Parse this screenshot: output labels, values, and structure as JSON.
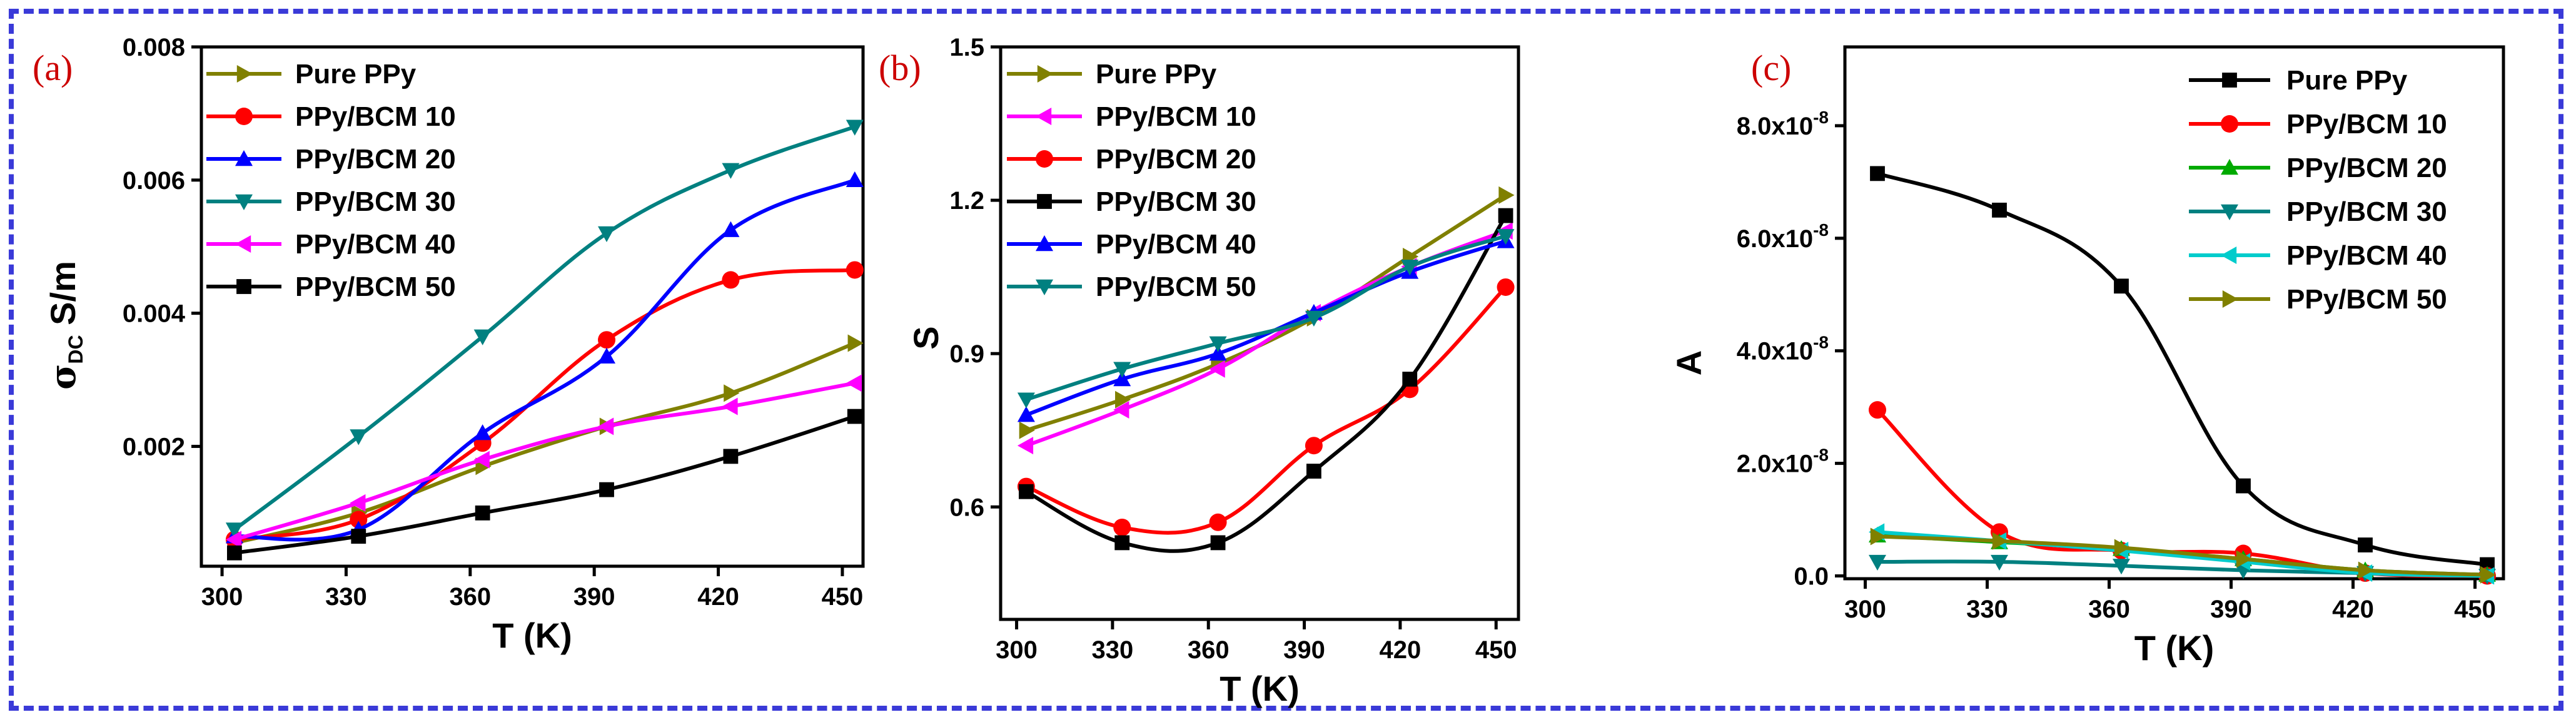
{
  "colors": {
    "frame": "#3a3ad8",
    "panel_letter": "#cc0000",
    "olive": "#808000",
    "red": "#ff0000",
    "blue": "#0000ff",
    "teal": "#008080",
    "magenta": "#ff00ff",
    "black": "#000000",
    "green": "#00aa00",
    "cyan": "#00cccc"
  },
  "chart_data": [
    {
      "type": "line",
      "panel": "(a)",
      "xlabel": "T (K)",
      "ylabel": "σDC S/m",
      "ylabel_main": "σ",
      "ylabel_sub": "DC",
      "ylabel_unit": " S/m",
      "xlim": [
        295,
        455
      ],
      "ylim": [
        0.0002,
        0.008
      ],
      "xticks": [
        300,
        330,
        360,
        390,
        420,
        450
      ],
      "xtick_labels": [
        "300",
        "330",
        "360",
        "390",
        "420",
        "450"
      ],
      "yticks": [
        0.002,
        0.004,
        0.006,
        0.008
      ],
      "ytick_labels": [
        "0.002",
        "0.004",
        "0.006",
        "0.008"
      ],
      "legend_position": "top-left",
      "series": [
        {
          "name": "Pure PPy",
          "color": "#808000",
          "marker": "triangle-right",
          "x": [
            303,
            333,
            363,
            393,
            423,
            453
          ],
          "y": [
            0.00055,
            0.001,
            0.0017,
            0.0023,
            0.0028,
            0.00355
          ]
        },
        {
          "name": "PPy/BCM 10",
          "color": "#ff0000",
          "marker": "circle",
          "x": [
            303,
            333,
            363,
            393,
            423,
            453
          ],
          "y": [
            0.0006,
            0.0009,
            0.00205,
            0.0036,
            0.0045,
            0.00465
          ]
        },
        {
          "name": "PPy/BCM 20",
          "color": "#0000ff",
          "marker": "triangle-up",
          "x": [
            303,
            333,
            363,
            393,
            423,
            453
          ],
          "y": [
            0.00065,
            0.00075,
            0.0022,
            0.00335,
            0.00525,
            0.006
          ]
        },
        {
          "name": "PPy/BCM 30",
          "color": "#008080",
          "marker": "triangle-down",
          "x": [
            303,
            333,
            363,
            393,
            423,
            453
          ],
          "y": [
            0.00075,
            0.00215,
            0.00365,
            0.0052,
            0.00615,
            0.0068
          ]
        },
        {
          "name": "PPy/BCM 40",
          "color": "#ff00ff",
          "marker": "triangle-left",
          "x": [
            303,
            333,
            363,
            393,
            423,
            453
          ],
          "y": [
            0.0006,
            0.00115,
            0.0018,
            0.0023,
            0.0026,
            0.00295
          ]
        },
        {
          "name": "PPy/BCM 50",
          "color": "#000000",
          "marker": "square",
          "x": [
            303,
            333,
            363,
            393,
            423,
            453
          ],
          "y": [
            0.0004,
            0.00065,
            0.001,
            0.00135,
            0.00185,
            0.00245
          ]
        }
      ]
    },
    {
      "type": "line",
      "panel": "(b)",
      "xlabel": "T (K)",
      "ylabel": "S",
      "xlim": [
        295,
        457
      ],
      "ylim": [
        0.38,
        1.5
      ],
      "xticks": [
        300,
        330,
        360,
        390,
        420,
        450
      ],
      "xtick_labels": [
        "300",
        "330",
        "360",
        "390",
        "420",
        "450"
      ],
      "yticks": [
        0.6,
        0.9,
        1.2,
        1.5
      ],
      "ytick_labels": [
        "0.6",
        "0.9",
        "1.2",
        "1.5"
      ],
      "legend_position": "top-left",
      "series": [
        {
          "name": "Pure PPy",
          "color": "#808000",
          "marker": "triangle-right",
          "x": [
            303,
            333,
            363,
            393,
            423,
            453
          ],
          "y": [
            0.75,
            0.81,
            0.88,
            0.97,
            1.09,
            1.21
          ]
        },
        {
          "name": "PPy/BCM 10",
          "color": "#ff00ff",
          "marker": "triangle-left",
          "x": [
            303,
            333,
            363,
            393,
            423,
            453
          ],
          "y": [
            0.72,
            0.79,
            0.87,
            0.98,
            1.07,
            1.14
          ]
        },
        {
          "name": "PPy/BCM 20",
          "color": "#ff0000",
          "marker": "circle",
          "x": [
            303,
            333,
            363,
            393,
            423,
            453
          ],
          "y": [
            0.64,
            0.56,
            0.57,
            0.72,
            0.83,
            1.03
          ]
        },
        {
          "name": "PPy/BCM 30",
          "color": "#000000",
          "marker": "square",
          "x": [
            303,
            333,
            363,
            393,
            423,
            453
          ],
          "y": [
            0.63,
            0.53,
            0.53,
            0.67,
            0.85,
            1.17
          ]
        },
        {
          "name": "PPy/BCM 40",
          "color": "#0000ff",
          "marker": "triangle-up",
          "x": [
            303,
            333,
            363,
            393,
            423,
            453
          ],
          "y": [
            0.78,
            0.85,
            0.9,
            0.98,
            1.06,
            1.12
          ]
        },
        {
          "name": "PPy/BCM 50",
          "color": "#008080",
          "marker": "triangle-down",
          "x": [
            303,
            333,
            363,
            393,
            423,
            453
          ],
          "y": [
            0.81,
            0.87,
            0.92,
            0.97,
            1.07,
            1.13
          ]
        }
      ]
    },
    {
      "type": "line",
      "panel": "(c)",
      "xlabel": "T (K)",
      "ylabel": "A",
      "xlim": [
        295,
        457
      ],
      "ylim": [
        -5e-10,
        9.4e-08
      ],
      "xticks": [
        300,
        330,
        360,
        390,
        420,
        450
      ],
      "xtick_labels": [
        "300",
        "330",
        "360",
        "390",
        "420",
        "450"
      ],
      "yticks": [
        0,
        2e-08,
        4e-08,
        6e-08,
        8e-08
      ],
      "ytick_labels": [
        "0.0",
        "2.0x10",
        "4.0x10",
        "6.0x10",
        "8.0x10"
      ],
      "ytick_exponent": "-8",
      "legend_position": "top-right",
      "series": [
        {
          "name": "Pure PPy",
          "color": "#000000",
          "marker": "square",
          "x": [
            303,
            333,
            363,
            393,
            423,
            453
          ],
          "y": [
            7.15e-08,
            6.5e-08,
            5.15e-08,
            1.6e-08,
            5.5e-09,
            2e-09
          ]
        },
        {
          "name": "PPy/BCM 10",
          "color": "#ff0000",
          "marker": "circle",
          "x": [
            303,
            333,
            363,
            393,
            423,
            453
          ],
          "y": [
            2.95e-08,
            7.8e-09,
            4.5e-09,
            4e-09,
            5e-10,
            0.0
          ]
        },
        {
          "name": "PPy/BCM 20",
          "color": "#00aa00",
          "marker": "triangle-up",
          "x": [
            303,
            333,
            363,
            393,
            423,
            453
          ],
          "y": [
            7.2e-09,
            6e-09,
            4.8e-09,
            3e-09,
            1e-09,
            2e-10
          ]
        },
        {
          "name": "PPy/BCM 30",
          "color": "#008080",
          "marker": "triangle-down",
          "x": [
            303,
            333,
            363,
            393,
            423,
            453
          ],
          "y": [
            2.5e-09,
            2.5e-09,
            1.8e-09,
            1e-09,
            5e-10,
            0.0
          ]
        },
        {
          "name": "PPy/BCM 40",
          "color": "#00cccc",
          "marker": "triangle-left",
          "x": [
            303,
            333,
            363,
            393,
            423,
            453
          ],
          "y": [
            7.8e-09,
            6.2e-09,
            4.5e-09,
            2.5e-09,
            5e-10,
            0.0
          ]
        },
        {
          "name": "PPy/BCM 50",
          "color": "#808000",
          "marker": "triangle-right",
          "x": [
            303,
            333,
            363,
            393,
            423,
            453
          ],
          "y": [
            7e-09,
            6.2e-09,
            5e-09,
            3e-09,
            1e-09,
            2e-10
          ]
        }
      ]
    }
  ]
}
